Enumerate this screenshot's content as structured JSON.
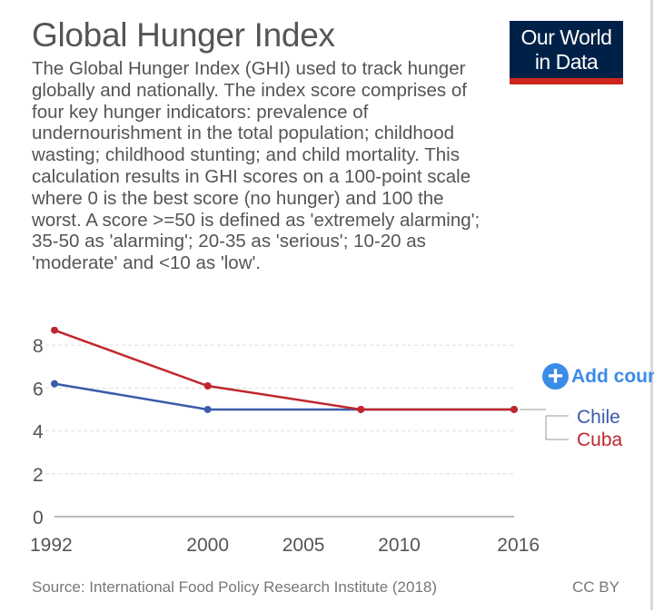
{
  "header": {
    "title": "Global Hunger Index",
    "subtitle": "The Global Hunger Index (GHI) used to track hunger globally and nationally. The index score comprises of four key hunger indicators: prevalence of undernourishment in the total population; childhood wasting; childhood stunting; and child mortality. This calculation results in GHI scores on a 100-point scale where 0 is the best score (no hunger) and 100 the worst. A score >=50 is defined as 'extremely alarming'; 35-50 as 'alarming'; 20-35 as 'serious'; 10-20 as 'moderate' and <10 as 'low'."
  },
  "logo": {
    "line1": "Our World",
    "line2": "in Data"
  },
  "controls": {
    "add_country_label": "Add country"
  },
  "footer": {
    "source": "Source: International Food Policy Research Institute (2018)",
    "license": "CC BY"
  },
  "colors": {
    "chile": "#3a5bab",
    "cuba": "#c0272d",
    "grid": "#dddddd",
    "axis": "#444444"
  },
  "chart_data": {
    "type": "line",
    "title": "Global Hunger Index",
    "xlim": [
      1992,
      2016
    ],
    "ylim": [
      0,
      8.6
    ],
    "x_ticks": [
      1992,
      2000,
      2005,
      2010,
      2016
    ],
    "y_ticks": [
      0,
      2,
      4,
      6,
      8
    ],
    "grid": true,
    "legend_placement": "right",
    "series": [
      {
        "name": "Chile",
        "color": "#3a5bab",
        "x": [
          1992,
          2000,
          2008,
          2016
        ],
        "y": [
          6.2,
          5.0,
          5.0,
          5.0
        ]
      },
      {
        "name": "Cuba",
        "color": "#c0272d",
        "x": [
          1992,
          2000,
          2008,
          2016
        ],
        "y": [
          8.7,
          6.1,
          5.0,
          5.0
        ]
      }
    ]
  }
}
